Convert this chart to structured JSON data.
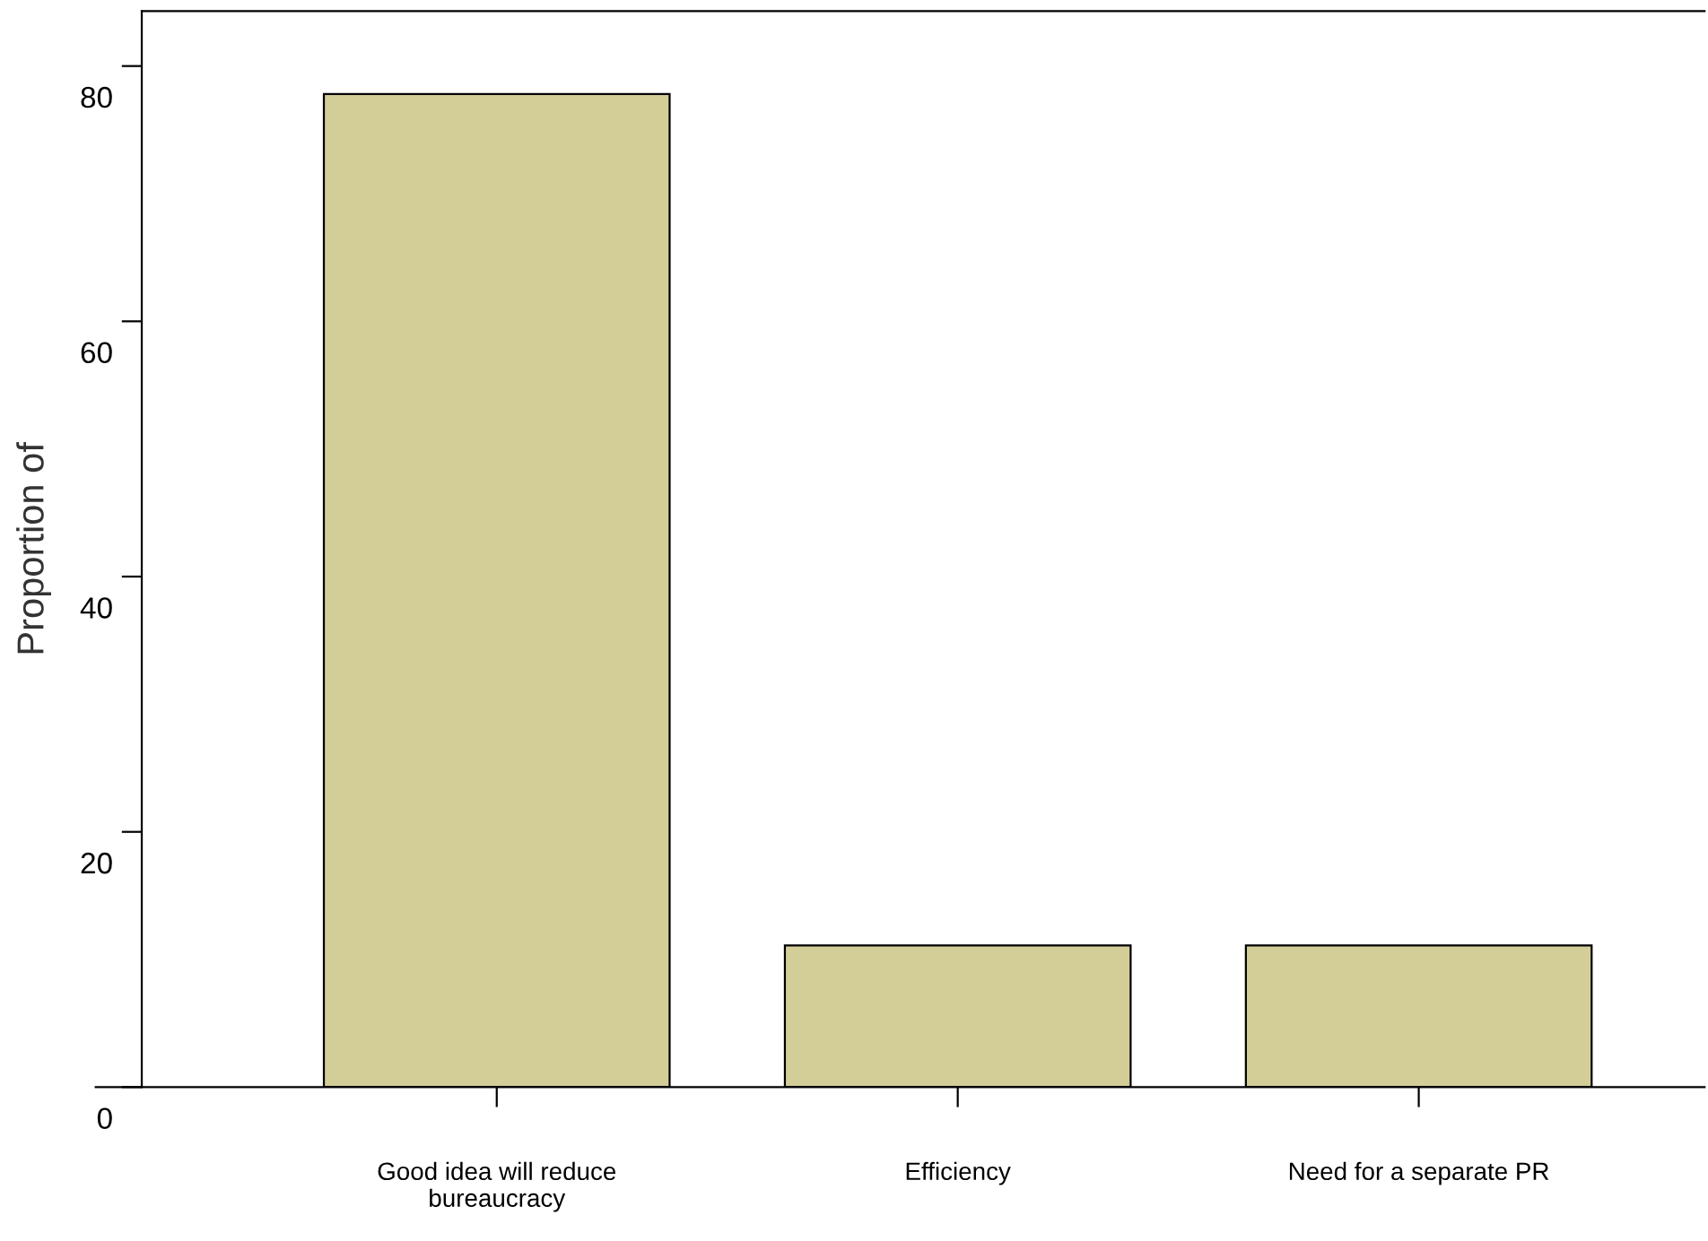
{
  "chart_data": {
    "type": "bar",
    "ylabel": "Proportion of",
    "categories": [
      "Good idea will reduce\nbureaucracy",
      "Efficiency",
      "Need for a separate PR"
    ],
    "values": [
      77.8,
      11.1,
      11.1
    ],
    "color": "#d3cd98",
    "ylim": [
      0,
      84.3
    ],
    "yticks": [
      0,
      20,
      40,
      60,
      80
    ],
    "grid": false,
    "legend": false
  }
}
